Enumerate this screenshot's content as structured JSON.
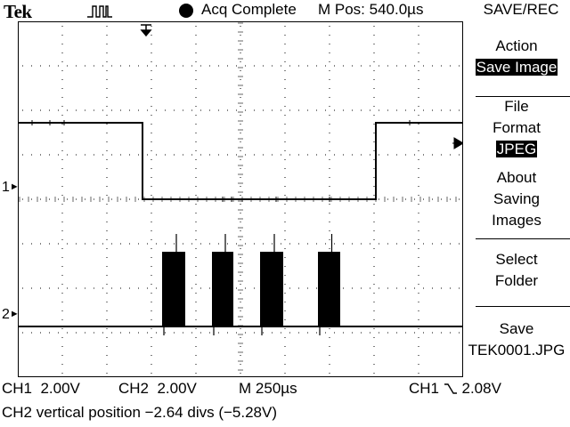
{
  "header": {
    "brand": "Tek",
    "trigger_icon": "square-pulse-icon",
    "status_icon": "filled-circle-icon",
    "status": "Acq Complete",
    "position": "M Pos: 540.0µs"
  },
  "menu": {
    "title": "SAVE/REC",
    "items": [
      {
        "lines": [
          "Action"
        ],
        "value": "Save Image"
      },
      {
        "lines": [
          "File",
          "Format"
        ],
        "value": "JPEG"
      },
      {
        "lines": [
          "About",
          "Saving",
          "Images"
        ]
      },
      {
        "lines": [
          "Select",
          "Folder"
        ]
      },
      {
        "lines": [
          "Save",
          "TEK0001.JPG"
        ]
      }
    ]
  },
  "markers": {
    "ch1": "1",
    "ch2": "2"
  },
  "footer": {
    "ch1_label": "CH1",
    "ch1_scale": "2.00V",
    "ch2_label": "CH2",
    "ch2_scale": "2.00V",
    "time_label": "M",
    "time_scale": "250µs",
    "trigger_source": "CH1",
    "trigger_icon": "falling-edge-icon",
    "trigger_level": "2.08V",
    "message": "CH2 vertical position −2.64 divs (−5.28V)"
  },
  "chart_data": {
    "type": "line",
    "x_unit": "µs",
    "y_unit": "div",
    "xlim": [
      0,
      2500
    ],
    "ylim": [
      -4,
      4
    ],
    "grid": true,
    "series": [
      {
        "name": "CH1",
        "x": [
          0,
          700,
          700,
          2010,
          2010,
          2500
        ],
        "y": [
          1.72,
          1.72,
          0.0,
          0.0,
          1.72,
          1.72
        ]
      },
      {
        "name": "CH2",
        "x": [
          0,
          2500
        ],
        "y": [
          -2.86,
          -2.86
        ]
      }
    ],
    "bursts": [
      {
        "series": "CH2",
        "x_start": 810,
        "x_end": 940,
        "high": -1.18
      },
      {
        "series": "CH2",
        "x_start": 1090,
        "x_end": 1210,
        "high": -1.18
      },
      {
        "series": "CH2",
        "x_start": 1360,
        "x_end": 1490,
        "high": -1.18
      },
      {
        "series": "CH2",
        "x_start": 1685,
        "x_end": 1810,
        "high": -1.18
      }
    ]
  }
}
